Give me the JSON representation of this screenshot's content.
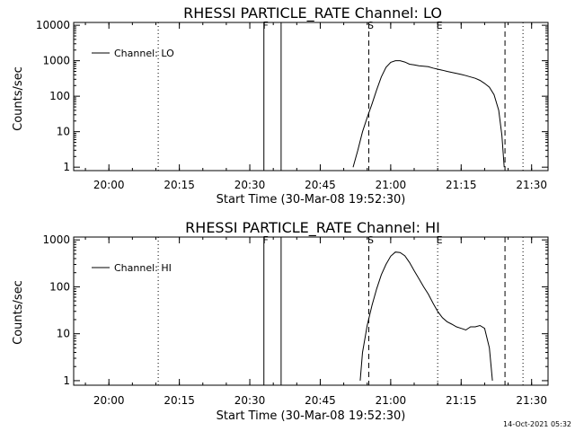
{
  "timestamp": "14-Oct-2021 05:32",
  "chart_data": [
    {
      "type": "line",
      "title": "RHESSI PARTICLE_RATE Channel: LO",
      "xlabel": "Start Time (30-Mar-08 19:52:30)",
      "ylabel": "Counts/sec",
      "xlim": [
        "19:52:30",
        "21:33:30"
      ],
      "ylim": [
        0.8,
        12000
      ],
      "yscale": "log",
      "xticks": [
        "20:00",
        "20:15",
        "20:30",
        "20:45",
        "21:00",
        "21:15",
        "21:30"
      ],
      "yticks": [
        {
          "value": 1,
          "label": "1"
        },
        {
          "value": 10,
          "label": "10"
        },
        {
          "value": 100,
          "label": "100"
        },
        {
          "value": 1000,
          "label": "1000"
        },
        {
          "value": 10000,
          "label": "10000"
        }
      ],
      "legend": {
        "label": "Channel: LO",
        "placement": "top-left"
      },
      "markers": [
        {
          "label": "F",
          "time": "20:33:00",
          "style": "solid"
        },
        {
          "label": "",
          "time": "20:36:40",
          "style": "solid"
        },
        {
          "label": "S",
          "time": "20:55:20",
          "style": "dashed"
        },
        {
          "label": "E",
          "time": "21:10:00",
          "style": "dotted"
        },
        {
          "label": "",
          "time": "21:24:20",
          "style": "dashed"
        },
        {
          "label": "",
          "time": "20:10:30",
          "style": "dotted"
        },
        {
          "label": "",
          "time": "21:28:10",
          "style": "dotted"
        }
      ],
      "series": [
        {
          "name": "Channel: LO",
          "points": [
            [
              "20:52:00",
              1
            ],
            [
              "20:53:00",
              3
            ],
            [
              "20:54:00",
              10
            ],
            [
              "20:55:00",
              25
            ],
            [
              "20:56:00",
              60
            ],
            [
              "20:57:00",
              150
            ],
            [
              "20:58:00",
              350
            ],
            [
              "20:59:00",
              650
            ],
            [
              "21:00:00",
              900
            ],
            [
              "21:01:00",
              1000
            ],
            [
              "21:02:00",
              1000
            ],
            [
              "21:03:00",
              920
            ],
            [
              "21:04:00",
              800
            ],
            [
              "21:05:00",
              760
            ],
            [
              "21:06:00",
              720
            ],
            [
              "21:07:00",
              700
            ],
            [
              "21:08:00",
              680
            ],
            [
              "21:09:00",
              620
            ],
            [
              "21:10:00",
              580
            ],
            [
              "21:11:00",
              540
            ],
            [
              "21:12:00",
              500
            ],
            [
              "21:13:00",
              470
            ],
            [
              "21:14:00",
              440
            ],
            [
              "21:15:00",
              410
            ],
            [
              "21:16:00",
              380
            ],
            [
              "21:17:00",
              350
            ],
            [
              "21:18:00",
              320
            ],
            [
              "21:19:00",
              280
            ],
            [
              "21:20:00",
              230
            ],
            [
              "21:21:00",
              180
            ],
            [
              "21:22:00",
              110
            ],
            [
              "21:23:00",
              40
            ],
            [
              "21:23:40",
              8
            ],
            [
              "21:24:10",
              1
            ]
          ]
        }
      ]
    },
    {
      "type": "line",
      "title": "RHESSI PARTICLE_RATE Channel: HI",
      "xlabel": "Start Time (30-Mar-08 19:52:30)",
      "ylabel": "Counts/sec",
      "xlim": [
        "19:52:30",
        "21:33:30"
      ],
      "ylim": [
        0.8,
        1150
      ],
      "yscale": "log",
      "xticks": [
        "20:00",
        "20:15",
        "20:30",
        "20:45",
        "21:00",
        "21:15",
        "21:30"
      ],
      "yticks": [
        {
          "value": 1,
          "label": "1"
        },
        {
          "value": 10,
          "label": "10"
        },
        {
          "value": 100,
          "label": "100"
        },
        {
          "value": 1000,
          "label": "1000"
        }
      ],
      "legend": {
        "label": "Channel: HI",
        "placement": "top-left"
      },
      "markers": [
        {
          "label": "F",
          "time": "20:33:00",
          "style": "solid"
        },
        {
          "label": "",
          "time": "20:36:40",
          "style": "solid"
        },
        {
          "label": "S",
          "time": "20:55:20",
          "style": "dashed"
        },
        {
          "label": "E",
          "time": "21:10:00",
          "style": "dotted"
        },
        {
          "label": "",
          "time": "21:24:20",
          "style": "dashed"
        },
        {
          "label": "",
          "time": "20:10:30",
          "style": "dotted"
        },
        {
          "label": "",
          "time": "21:28:10",
          "style": "dotted"
        }
      ],
      "series": [
        {
          "name": "Channel: HI",
          "points": [
            [
              "20:53:30",
              1
            ],
            [
              "20:54:00",
              4
            ],
            [
              "20:55:00",
              15
            ],
            [
              "20:56:00",
              40
            ],
            [
              "20:57:00",
              90
            ],
            [
              "20:58:00",
              180
            ],
            [
              "20:59:00",
              300
            ],
            [
              "21:00:00",
              450
            ],
            [
              "21:01:00",
              550
            ],
            [
              "21:02:00",
              540
            ],
            [
              "21:03:00",
              460
            ],
            [
              "21:04:00",
              330
            ],
            [
              "21:05:00",
              220
            ],
            [
              "21:06:00",
              150
            ],
            [
              "21:07:00",
              100
            ],
            [
              "21:08:00",
              70
            ],
            [
              "21:09:00",
              45
            ],
            [
              "21:10:00",
              30
            ],
            [
              "21:11:00",
              22
            ],
            [
              "21:12:00",
              18
            ],
            [
              "21:13:00",
              16
            ],
            [
              "21:14:00",
              14
            ],
            [
              "21:15:00",
              13
            ],
            [
              "21:16:00",
              12
            ],
            [
              "21:17:00",
              14
            ],
            [
              "21:18:00",
              14
            ],
            [
              "21:19:00",
              15
            ],
            [
              "21:20:00",
              13
            ],
            [
              "21:21:00",
              5
            ],
            [
              "21:21:40",
              1
            ]
          ]
        }
      ]
    }
  ]
}
